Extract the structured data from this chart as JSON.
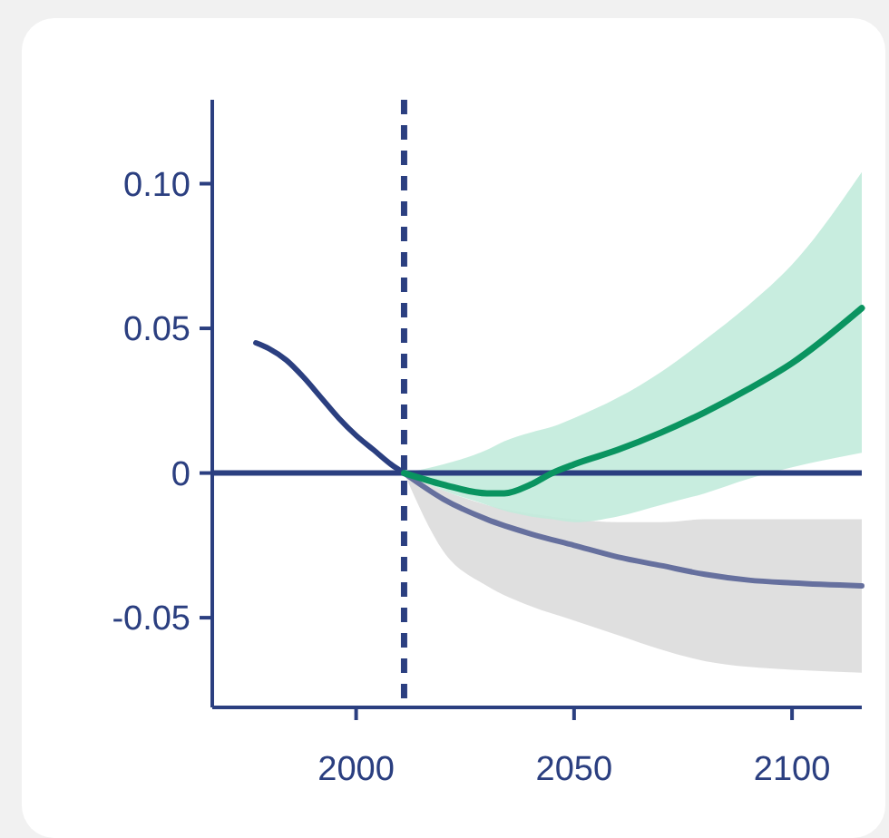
{
  "chart_data": {
    "type": "line",
    "xlim": [
      1967,
      2116
    ],
    "ylim": [
      -0.081,
      0.129
    ],
    "xticks": [
      2000,
      2050,
      2100
    ],
    "yticks": [
      {
        "value": 0.1,
        "label": "0.10"
      },
      0.05,
      0,
      -0.05
    ],
    "grid": false,
    "line_style": "solid",
    "series": [
      {
        "color": "#2b3f80",
        "x": [
          1977,
          1980,
          1984,
          1988,
          1992,
          1996,
          2000,
          2004,
          2008,
          2011
        ],
        "values": [
          0.045,
          0.043,
          0.039,
          0.033,
          0.026,
          0.019,
          0.013,
          0.008,
          0.003,
          0
        ]
      },
      {
        "color": "#66709e",
        "x": [
          2011,
          2020,
          2030,
          2040,
          2050,
          2060,
          2070,
          2080,
          2090,
          2100,
          2116
        ],
        "values": [
          0,
          -0.009,
          -0.016,
          -0.021,
          -0.025,
          -0.029,
          -0.032,
          -0.035,
          -0.037,
          -0.038,
          -0.039
        ],
        "lower": [
          0,
          -0.027,
          -0.039,
          -0.046,
          -0.051,
          -0.056,
          -0.061,
          -0.065,
          -0.067,
          -0.068,
          -0.069
        ],
        "upper": [
          0,
          -0.006,
          -0.011,
          -0.014,
          -0.016,
          -0.017,
          -0.017,
          -0.016,
          -0.016,
          -0.016,
          -0.016
        ]
      },
      {
        "color": "#0a9460",
        "x": [
          2011,
          2020,
          2030,
          2034,
          2040,
          2045,
          2050,
          2060,
          2070,
          2080,
          2090,
          2100,
          2116
        ],
        "values": [
          0,
          -0.004,
          -0.007,
          -0.007,
          -0.004,
          0,
          0.003,
          0.008,
          0.014,
          0.021,
          0.029,
          0.038,
          0.057
        ],
        "lower": [
          0,
          -0.006,
          -0.011,
          -0.013,
          -0.015,
          -0.016,
          -0.017,
          -0.015,
          -0.011,
          -0.007,
          -0.002,
          0.002,
          0.007
        ],
        "upper": [
          0,
          0.003,
          0.008,
          0.011,
          0.014,
          0.016,
          0.019,
          0.026,
          0.035,
          0.046,
          0.058,
          0.072,
          0.104
        ]
      }
    ],
    "ref_lines": [
      {
        "axis": "x",
        "value": 2011,
        "color": "#2b3f80",
        "line_style": "dashed"
      },
      {
        "axis": "y",
        "value": 0,
        "color": "#2b3f80",
        "line_style": "solid"
      }
    ]
  }
}
